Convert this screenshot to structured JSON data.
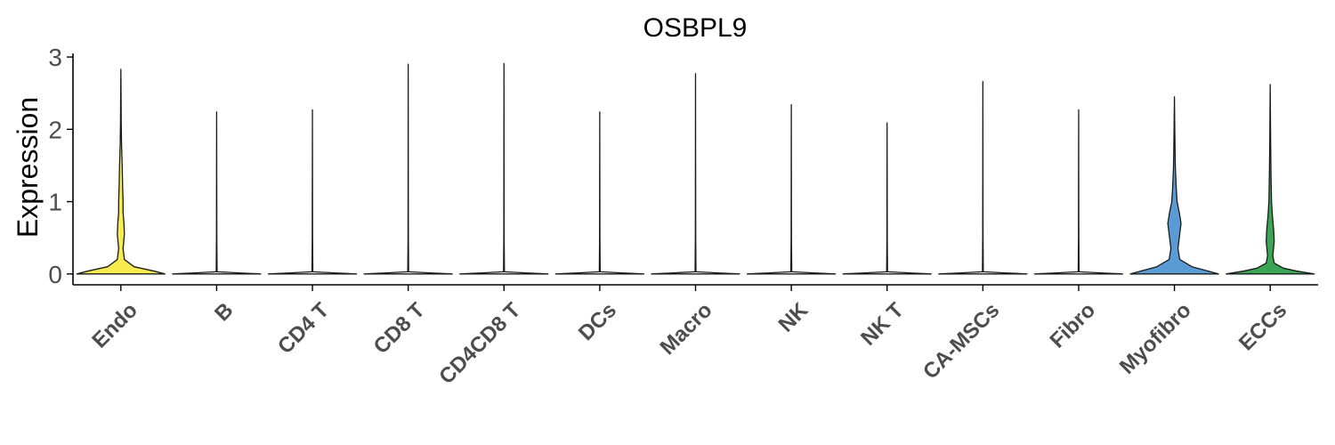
{
  "chart_data": {
    "type": "violin",
    "title": "OSBPL9",
    "xlabel": "",
    "ylabel": "Expression",
    "ylim": [
      -0.15,
      3.05
    ],
    "yticks": [
      0,
      1,
      2,
      3
    ],
    "grid": false,
    "legend": "none",
    "categories": [
      "Endo",
      "B",
      "CD4 T",
      "CD8 T",
      "CD4CD8 T",
      "DCs",
      "Macro",
      "NK",
      "NK T",
      "CA-MSCs",
      "Fibro",
      "Myofibro",
      "ECCs"
    ],
    "max_values": [
      2.83,
      2.24,
      2.27,
      2.9,
      2.91,
      2.24,
      2.77,
      2.34,
      2.09,
      2.66,
      2.27,
      2.45,
      2.62
    ],
    "colors": [
      "#f6ec50",
      "#ffffff",
      "#ffffff",
      "#ffffff",
      "#ffffff",
      "#ffffff",
      "#ffffff",
      "#ffffff",
      "#ffffff",
      "#ffffff",
      "#ffffff",
      "#5b9bd5",
      "#3aa655"
    ],
    "density_profiles": {
      "Endo": [
        [
          0,
          1.0
        ],
        [
          0.04,
          0.75
        ],
        [
          0.1,
          0.3
        ],
        [
          0.2,
          0.08
        ],
        [
          0.35,
          0.05
        ],
        [
          0.55,
          0.08
        ],
        [
          0.7,
          0.07
        ],
        [
          0.85,
          0.05
        ],
        [
          1.0,
          0.05
        ],
        [
          1.2,
          0.04
        ],
        [
          1.5,
          0.03
        ],
        [
          1.8,
          0.015
        ],
        [
          2.1,
          0.008
        ],
        [
          2.83,
          0.0
        ]
      ],
      "Myofibro": [
        [
          0,
          1.0
        ],
        [
          0.05,
          0.7
        ],
        [
          0.1,
          0.4
        ],
        [
          0.2,
          0.12
        ],
        [
          0.35,
          0.08
        ],
        [
          0.5,
          0.11
        ],
        [
          0.7,
          0.15
        ],
        [
          0.85,
          0.11
        ],
        [
          1.0,
          0.06
        ],
        [
          1.2,
          0.04
        ],
        [
          1.5,
          0.02
        ],
        [
          2.0,
          0.008
        ],
        [
          2.45,
          0.0
        ]
      ],
      "ECCs": [
        [
          0,
          1.0
        ],
        [
          0.04,
          0.6
        ],
        [
          0.08,
          0.3
        ],
        [
          0.15,
          0.09
        ],
        [
          0.25,
          0.06
        ],
        [
          0.45,
          0.09
        ],
        [
          0.6,
          0.08
        ],
        [
          0.8,
          0.05
        ],
        [
          1.0,
          0.03
        ],
        [
          1.3,
          0.02
        ],
        [
          1.8,
          0.01
        ],
        [
          2.62,
          0.0
        ]
      ],
      "default": [
        [
          0,
          1.0
        ],
        [
          0.015,
          0.5
        ],
        [
          0.03,
          0.01
        ],
        [
          0.5,
          0.004
        ],
        [
          1.0,
          0.003
        ]
      ]
    }
  }
}
